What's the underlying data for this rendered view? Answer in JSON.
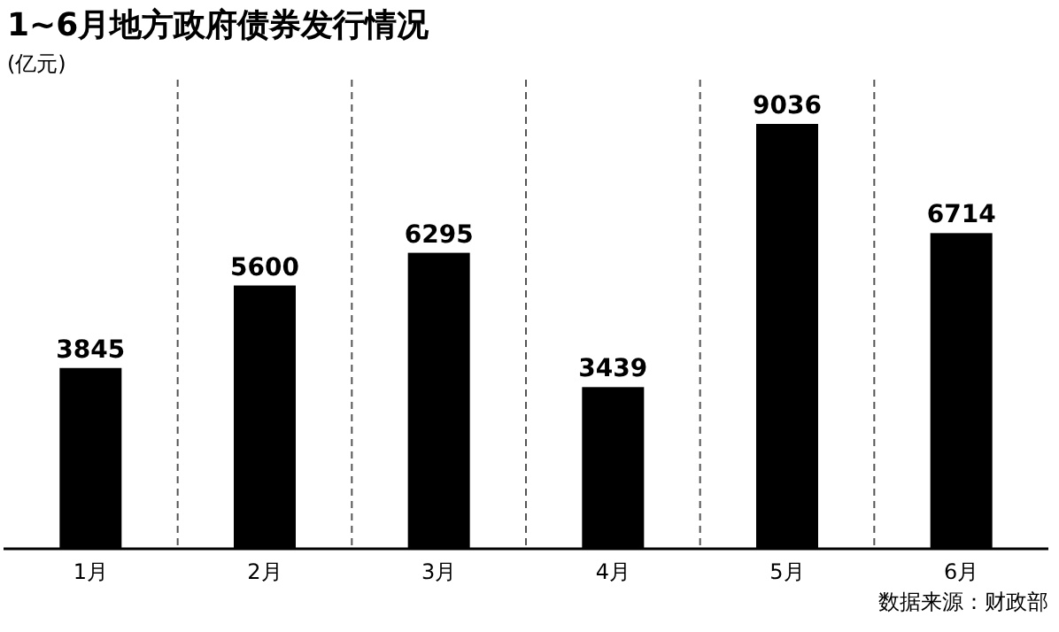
{
  "chart_data": {
    "type": "bar",
    "title": "1~6月地方政府债券发行情况",
    "subtitle": "(亿元)",
    "categories": [
      "1月",
      "2月",
      "3月",
      "4月",
      "5月",
      "6月"
    ],
    "values": [
      3845,
      5600,
      6295,
      3439,
      9036,
      6714
    ],
    "color": "#000000",
    "data_labels": true,
    "grid": "x",
    "annotations": [
      "数据来源：财政部"
    ]
  }
}
